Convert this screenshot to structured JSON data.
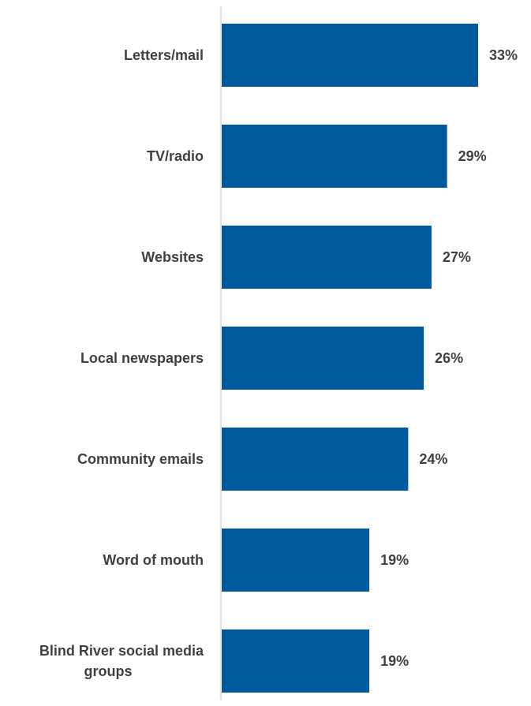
{
  "chart_data": {
    "type": "bar",
    "orientation": "horizontal",
    "title": "",
    "xlabel": "",
    "ylabel": "",
    "categories": [
      "Letters/mail",
      "TV/radio",
      "Websites",
      "Local newspapers",
      "Community emails",
      "Word of mouth",
      "Blind River social media groups"
    ],
    "values": [
      33,
      29,
      27,
      26,
      24,
      19,
      19
    ],
    "value_labels": [
      "33%",
      "29%",
      "27%",
      "26%",
      "24%",
      "19%",
      "19%"
    ],
    "category_label_lines": [
      [
        "Letters/mail"
      ],
      [
        "TV/radio"
      ],
      [
        "Websites"
      ],
      [
        "Local newspapers"
      ],
      [
        "Community emails"
      ],
      [
        "Word of mouth"
      ],
      [
        "Blind River social media",
        "groups"
      ]
    ],
    "xlim": [
      0,
      33
    ],
    "grid": false,
    "legend": "none",
    "bar_color": "#005a9c",
    "axis_color": "#d9d9d9",
    "text_color": "#404040"
  }
}
